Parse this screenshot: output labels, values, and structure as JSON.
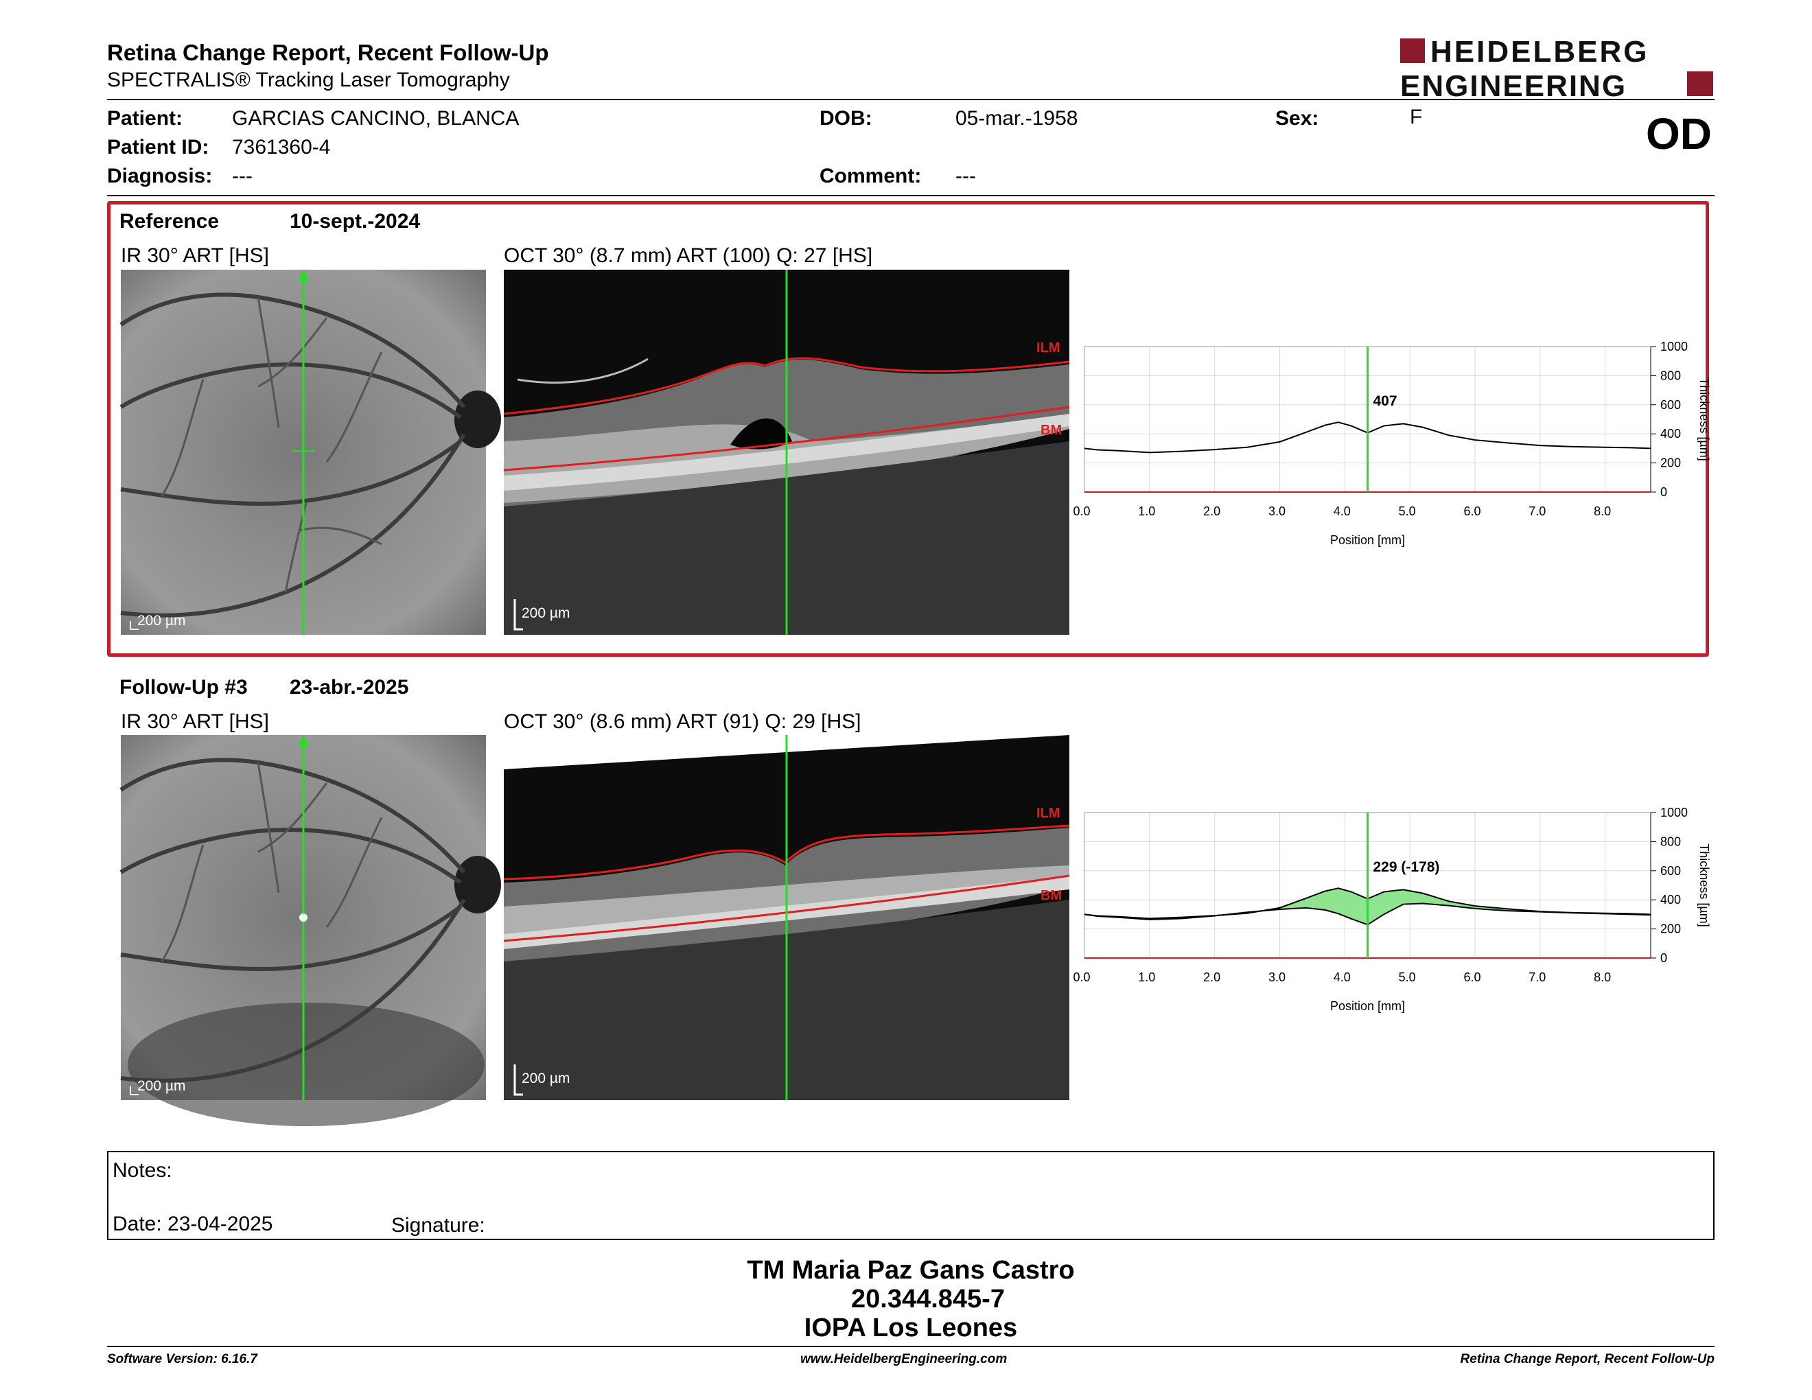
{
  "header": {
    "title": "Retina Change Report, Recent Follow-Up",
    "subtitle": "SPECTRALIS® Tracking Laser Tomography",
    "logo_line1": "HEIDELBERG",
    "logo_line2": "ENGINEERING",
    "brand_color": "#8b1a2b"
  },
  "patient": {
    "patient_label": "Patient:",
    "patient_value": "GARCIAS CANCINO, BLANCA",
    "id_label": "Patient ID:",
    "id_value": "7361360-4",
    "diagnosis_label": "Diagnosis:",
    "diagnosis_value": "---",
    "dob_label": "DOB:",
    "dob_value": "05-mar.-1958",
    "comment_label": "Comment:",
    "comment_value": "---",
    "sex_label": "Sex:",
    "sex_value": "F",
    "eye": "OD"
  },
  "reference": {
    "label": "Reference",
    "date": "10-sept.-2024",
    "ir_caption": "IR 30° ART [HS]",
    "oct_caption": "OCT 30° (8.7 mm) ART (100) Q: 27 [HS]",
    "ir_scale": "200 µm",
    "oct_scale": "200 µm",
    "ilm": "ILM",
    "bm": "BM"
  },
  "followup": {
    "label": "Follow-Up #3",
    "date": "23-abr.-2025",
    "ir_caption": "IR 30° ART [HS]",
    "oct_caption": "OCT 30° (8.6 mm) ART (91) Q: 29 [HS]",
    "ir_scale": "200 µm",
    "oct_scale": "200 µm",
    "ilm": "ILM",
    "bm": "BM"
  },
  "chart_data": [
    {
      "type": "line",
      "ylabel": "Thickness [µm]",
      "xlabel": "Position [mm]",
      "xlim": [
        0,
        8.7
      ],
      "ylim": [
        0,
        1000
      ],
      "x_ticks": [
        "0.0",
        "1.0",
        "2.0",
        "3.0",
        "4.0",
        "5.0",
        "6.0",
        "7.0",
        "8.0"
      ],
      "y_ticks": [
        "0",
        "200",
        "400",
        "600",
        "800",
        "1000"
      ],
      "cursor_x": 4.35,
      "cursor_label": "407",
      "series": [
        {
          "x": [
            0,
            0.2,
            0.5,
            1.0,
            1.5,
            2.0,
            2.5,
            3.0,
            3.4,
            3.7,
            3.9,
            4.1,
            4.35,
            4.6,
            4.9,
            5.2,
            5.6,
            6.0,
            6.5,
            7.0,
            7.5,
            8.0,
            8.4,
            8.7
          ],
          "values": [
            300,
            290,
            285,
            272,
            280,
            292,
            308,
            345,
            410,
            460,
            480,
            455,
            407,
            455,
            470,
            445,
            390,
            358,
            338,
            320,
            312,
            308,
            305,
            300
          ]
        }
      ]
    },
    {
      "type": "area",
      "ylabel": "Thickness [µm]",
      "xlabel": "Position [mm]",
      "xlim": [
        0,
        8.7
      ],
      "ylim": [
        0,
        1000
      ],
      "x_ticks": [
        "0.0",
        "1.0",
        "2.0",
        "3.0",
        "4.0",
        "5.0",
        "6.0",
        "7.0",
        "8.0"
      ],
      "y_ticks": [
        "0",
        "200",
        "400",
        "600",
        "800",
        "1000"
      ],
      "cursor_x": 4.35,
      "cursor_label": "229 (-178)",
      "fill_color": "#7be07b",
      "series": [
        {
          "x": [
            0,
            0.2,
            0.5,
            1.0,
            1.5,
            2.0,
            2.5,
            3.0,
            3.4,
            3.7,
            3.9,
            4.1,
            4.35,
            4.6,
            4.9,
            5.2,
            5.6,
            6.0,
            6.5,
            7.0,
            7.5,
            8.0,
            8.4,
            8.7
          ],
          "values": [
            300,
            290,
            285,
            272,
            280,
            292,
            308,
            345,
            410,
            460,
            480,
            455,
            407,
            455,
            470,
            445,
            390,
            358,
            338,
            320,
            312,
            308,
            305,
            300
          ]
        },
        {
          "x": [
            0,
            0.2,
            0.5,
            1.0,
            1.5,
            2.0,
            2.5,
            3.0,
            3.4,
            3.7,
            3.9,
            4.1,
            4.35,
            4.6,
            4.9,
            5.2,
            5.6,
            6.0,
            6.5,
            7.0,
            7.5,
            8.0,
            8.4,
            8.7
          ],
          "values": [
            300,
            288,
            280,
            265,
            272,
            290,
            315,
            335,
            345,
            330,
            305,
            270,
            229,
            300,
            370,
            375,
            360,
            340,
            325,
            318,
            310,
            305,
            300,
            296
          ]
        }
      ]
    }
  ],
  "notes": {
    "label": "Notes:",
    "date_label": "Date: 23-04-2025",
    "signature_label": "Signature:"
  },
  "signature_block": {
    "line1": "TM Maria Paz Gans Castro",
    "line2": "20.344.845-7",
    "line3": "IOPA Los Leones"
  },
  "footer": {
    "left": "Software Version: 6.16.7",
    "center": "www.HeidelbergEngineering.com",
    "right": "Retina Change Report, Recent Follow-Up"
  }
}
